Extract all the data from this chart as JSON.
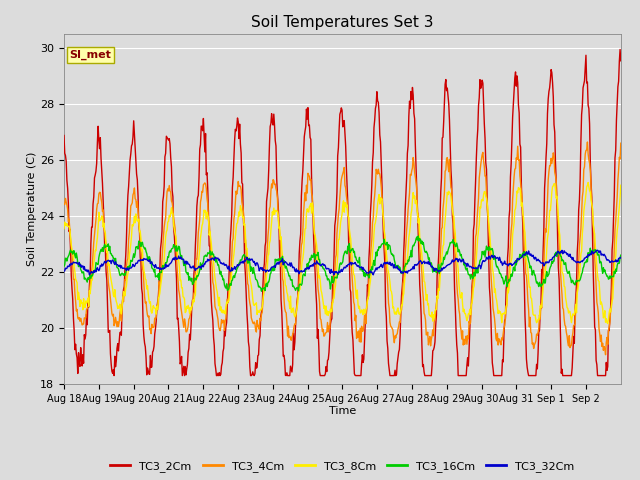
{
  "title": "Soil Temperatures Set 3",
  "xlabel": "Time",
  "ylabel": "Soil Temperature (C)",
  "ylim": [
    18,
    30.5
  ],
  "yticks": [
    18,
    20,
    22,
    24,
    26,
    28,
    30
  ],
  "xtick_labels": [
    "Aug 18",
    "Aug 19",
    "Aug 20",
    "Aug 21",
    "Aug 22",
    "Aug 23",
    "Aug 24",
    "Aug 25",
    "Aug 26",
    "Aug 27",
    "Aug 28",
    "Aug 29",
    "Aug 30",
    "Aug 31",
    "Sep 1",
    "Sep 2"
  ],
  "series_colors": {
    "TC3_2Cm": "#cc0000",
    "TC3_4Cm": "#ff8800",
    "TC3_8Cm": "#ffee00",
    "TC3_16Cm": "#00cc00",
    "TC3_32Cm": "#0000cc"
  },
  "linewidth": 1.0,
  "fig_bg": "#dcdcdc",
  "plot_bg": "#dcdcdc",
  "grid_color": "#ffffff",
  "annotation_text": "SI_met",
  "annotation_fg": "#880000",
  "annotation_bg": "#ffffaa",
  "annotation_border": "#aaaa00"
}
